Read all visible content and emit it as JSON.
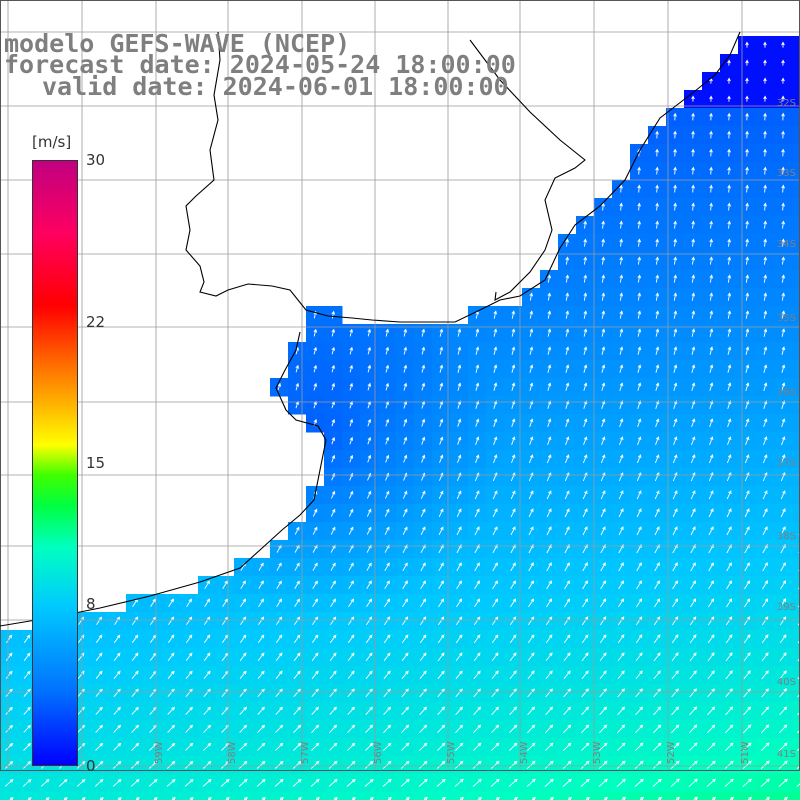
{
  "header": {
    "title_line1": "modelo GEFS-WAVE (NCEP)",
    "title_line2": "forecast date: 2024-05-24 18:00:00",
    "title_line3": "valid date: 2024-06-01 18:00:00"
  },
  "colorbar": {
    "unit": "[m/s]",
    "ticks": [
      "30",
      "22",
      "15",
      "8",
      "0"
    ],
    "tick_values": [
      30,
      22,
      15,
      8,
      0
    ],
    "min": 0,
    "max": 30
  },
  "grid": {
    "lat_labels": [
      "32S",
      "33S",
      "34S",
      "35S",
      "36S",
      "37S",
      "38S",
      "39S",
      "40S",
      "41S"
    ],
    "lon_labels": [
      "59W",
      "58W",
      "57W",
      "56W",
      "55W",
      "54W",
      "53W",
      "52W",
      "51W"
    ]
  },
  "colors": {
    "land": "#ffffff",
    "coast": "#000000",
    "grid": "#9a9a9a",
    "label": "#7f7f7f",
    "arrow": "#ffffff"
  },
  "field": {
    "variable": "wind speed",
    "arrows": "wind direction"
  }
}
